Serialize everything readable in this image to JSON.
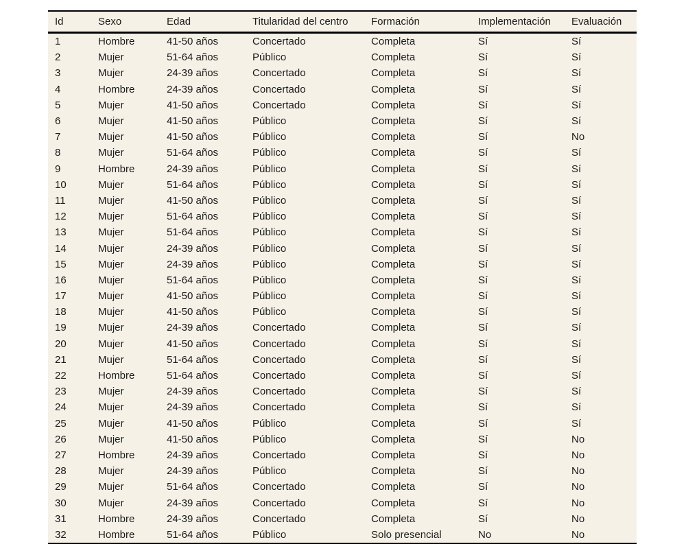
{
  "colors": {
    "page_background": "#ffffff",
    "table_background": "#f6f1e7",
    "rule_color": "#000000",
    "text_color": "#1a1a1a"
  },
  "table": {
    "columns": [
      "Id",
      "Sexo",
      "Edad",
      "Titularidad del centro",
      "Formación",
      "Implementación",
      "Evaluación"
    ],
    "rows": [
      [
        "1",
        "Hombre",
        "41-50 años",
        "Concertado",
        "Completa",
        "Sí",
        "Sí"
      ],
      [
        "2",
        "Mujer",
        "51-64 años",
        "Público",
        "Completa",
        "Sí",
        "Sí"
      ],
      [
        "3",
        "Mujer",
        "24-39 años",
        "Concertado",
        "Completa",
        "Sí",
        "Sí"
      ],
      [
        "4",
        "Hombre",
        "24-39 años",
        "Concertado",
        "Completa",
        "Sí",
        "Sí"
      ],
      [
        "5",
        "Mujer",
        "41-50 años",
        "Concertado",
        "Completa",
        "Sí",
        "Sí"
      ],
      [
        "6",
        "Mujer",
        "41-50 años",
        "Público",
        "Completa",
        "Sí",
        "Sí"
      ],
      [
        "7",
        "Mujer",
        "41-50 años",
        "Público",
        "Completa",
        "Sí",
        "No"
      ],
      [
        "8",
        "Mujer",
        "51-64 años",
        "Público",
        "Completa",
        "Sí",
        "Sí"
      ],
      [
        "9",
        "Hombre",
        "24-39 años",
        "Público",
        "Completa",
        "Sí",
        "Sí"
      ],
      [
        "10",
        "Mujer",
        "51-64 años",
        "Público",
        "Completa",
        "Sí",
        "Sí"
      ],
      [
        "11",
        "Mujer",
        "41-50 años",
        "Público",
        "Completa",
        "Sí",
        "Sí"
      ],
      [
        "12",
        "Mujer",
        "51-64 años",
        "Público",
        "Completa",
        "Sí",
        "Sí"
      ],
      [
        "13",
        "Mujer",
        "51-64 años",
        "Público",
        "Completa",
        "Sí",
        "Sí"
      ],
      [
        "14",
        "Mujer",
        "24-39 años",
        "Público",
        "Completa",
        "Sí",
        "Sí"
      ],
      [
        "15",
        "Mujer",
        "24-39 años",
        "Público",
        "Completa",
        "Sí",
        "Sí"
      ],
      [
        "16",
        "Mujer",
        "51-64 años",
        "Público",
        "Completa",
        "Sí",
        "Sí"
      ],
      [
        "17",
        "Mujer",
        "41-50 años",
        "Público",
        "Completa",
        "Sí",
        "Sí"
      ],
      [
        "18",
        "Mujer",
        "41-50 años",
        "Público",
        "Completa",
        "Sí",
        "Sí"
      ],
      [
        "19",
        "Mujer",
        "24-39 años",
        "Concertado",
        "Completa",
        "Sí",
        "Sí"
      ],
      [
        "20",
        "Mujer",
        "41-50 años",
        "Concertado",
        "Completa",
        "Sí",
        "Sí"
      ],
      [
        "21",
        "Mujer",
        "51-64 años",
        "Concertado",
        "Completa",
        "Sí",
        "Sí"
      ],
      [
        "22",
        "Hombre",
        "51-64 años",
        "Concertado",
        "Completa",
        "Sí",
        "Sí"
      ],
      [
        "23",
        "Mujer",
        "24-39 años",
        "Concertado",
        "Completa",
        "Sí",
        "Sí"
      ],
      [
        "24",
        "Mujer",
        "24-39 años",
        "Concertado",
        "Completa",
        "Sí",
        "Sí"
      ],
      [
        "25",
        "Mujer",
        "41-50 años",
        "Público",
        "Completa",
        "Sí",
        "Sí"
      ],
      [
        "26",
        "Mujer",
        "41-50 años",
        "Público",
        "Completa",
        "Sí",
        "No"
      ],
      [
        "27",
        "Hombre",
        "24-39 años",
        "Concertado",
        "Completa",
        "Sí",
        "No"
      ],
      [
        "28",
        "Mujer",
        "24-39 años",
        "Público",
        "Completa",
        "Sí",
        "No"
      ],
      [
        "29",
        "Mujer",
        "51-64 años",
        "Concertado",
        "Completa",
        "Sí",
        "No"
      ],
      [
        "30",
        "Mujer",
        "24-39 años",
        "Concertado",
        "Completa",
        "Sí",
        "No"
      ],
      [
        "31",
        "Hombre",
        "24-39 años",
        "Concertado",
        "Completa",
        "Sí",
        "No"
      ],
      [
        "32",
        "Hombre",
        "51-64 años",
        "Público",
        "Solo presencial",
        "No",
        "No"
      ]
    ]
  }
}
